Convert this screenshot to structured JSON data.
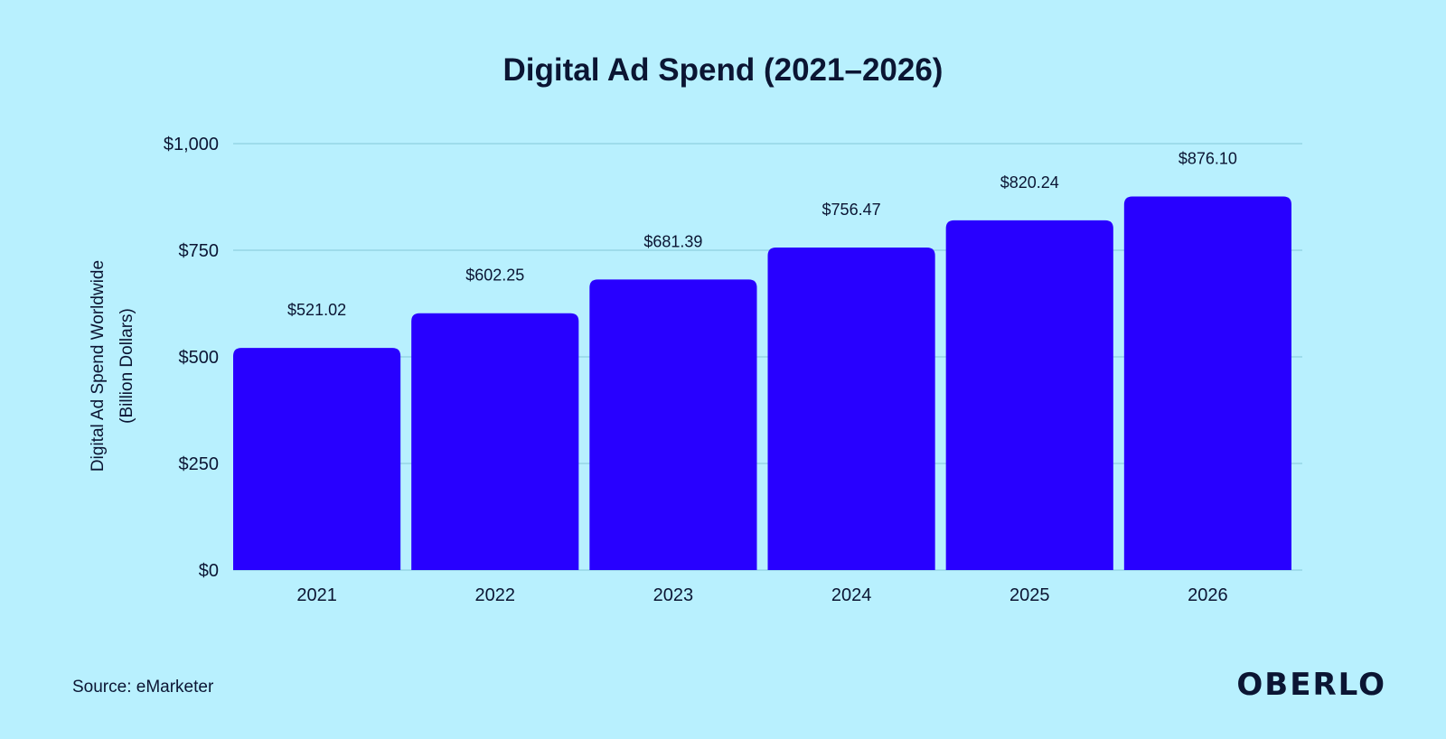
{
  "chart_data": {
    "type": "bar",
    "title": "Digital Ad Spend (2021–2026)",
    "categories": [
      "2021",
      "2022",
      "2023",
      "2024",
      "2025",
      "2026"
    ],
    "values": [
      521.02,
      602.25,
      681.39,
      756.47,
      820.24,
      876.1
    ],
    "value_labels": [
      "$521.02",
      "$602.25",
      "$681.39",
      "$756.47",
      "$820.24",
      "$876.10"
    ],
    "ylabel_line1": "Digital Ad Spend Worldwide",
    "ylabel_line2": "(Billion Dollars)",
    "xlabel": "",
    "ylim": [
      0,
      1000
    ],
    "yticks": [
      0,
      250,
      500,
      750,
      1000
    ],
    "ytick_labels": [
      "$0",
      "$250",
      "$500",
      "$750",
      "$1,000"
    ],
    "grid": true,
    "legend": "none"
  },
  "colors": {
    "background": "#b8f0fe",
    "bar": "#2800ff",
    "gridline": "#8fcfe0",
    "text": "#0b1533"
  },
  "source": "Source: eMarketer",
  "brand": "OBERLO"
}
